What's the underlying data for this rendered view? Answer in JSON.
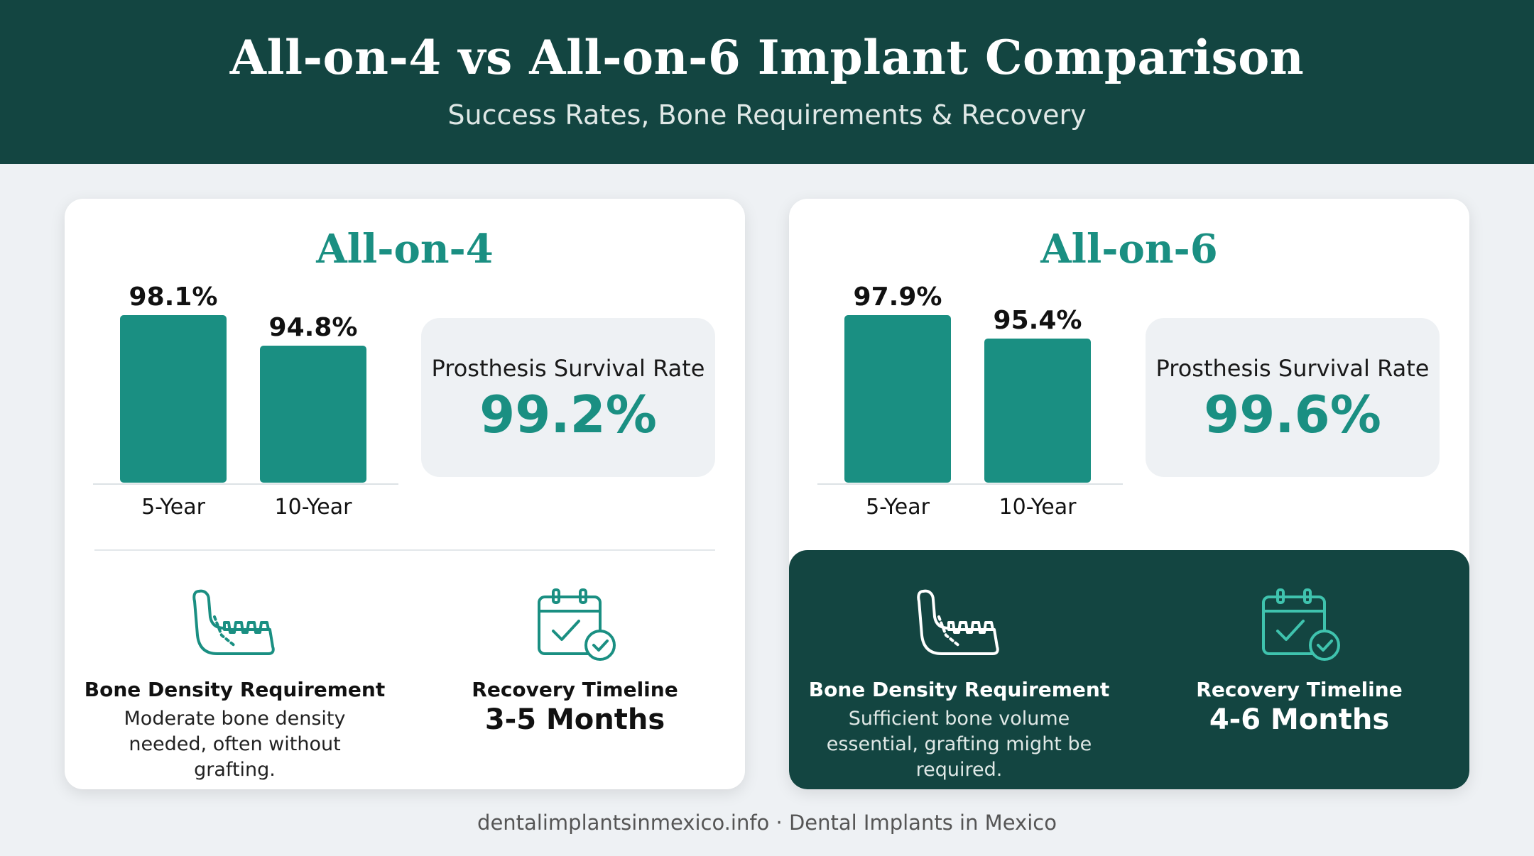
{
  "header": {
    "title": "All-on-4 vs All-on-6 Implant Comparison",
    "subtitle": "Success Rates, Bone Requirements & Recovery"
  },
  "colors": {
    "header_bg": "#134541",
    "accent": "#1a8f82",
    "panel_bg": "#eef1f4"
  },
  "cards": [
    {
      "title": "All-on-4",
      "survival_label": "Prosthesis Survival Rate",
      "survival_value": "99.2%",
      "bone_icon": "jaw-icon",
      "bone_title": "Bone Density Requirement",
      "bone_desc": "Moderate bone density needed, often without grafting.",
      "recovery_icon": "calendar-check-icon",
      "recovery_title": "Recovery Timeline",
      "recovery_value": "3-5 Months"
    },
    {
      "title": "All-on-6",
      "survival_label": "Prosthesis Survival Rate",
      "survival_value": "99.6%",
      "bone_icon": "jaw-icon",
      "bone_title": "Bone Density Requirement",
      "bone_desc": "Sufficient bone volume essential, grafting might be required.",
      "recovery_icon": "calendar-check-icon",
      "recovery_title": "Recovery Timeline",
      "recovery_value": "4-6 Months"
    }
  ],
  "chart_data": [
    {
      "type": "bar",
      "title": "All-on-4",
      "categories": [
        "5-Year",
        "10-Year"
      ],
      "values": [
        98.1,
        94.8
      ],
      "value_labels": [
        "98.1%",
        "94.8%"
      ],
      "ylim": [
        0,
        100
      ],
      "grid": false
    },
    {
      "type": "bar",
      "title": "All-on-6",
      "categories": [
        "5-Year",
        "10-Year"
      ],
      "values": [
        97.9,
        95.4
      ],
      "value_labels": [
        "97.9%",
        "95.4%"
      ],
      "ylim": [
        0,
        100
      ],
      "grid": false
    }
  ],
  "footer": {
    "text": "dentalimplantsinmexico.info · Dental Implants in Mexico"
  }
}
